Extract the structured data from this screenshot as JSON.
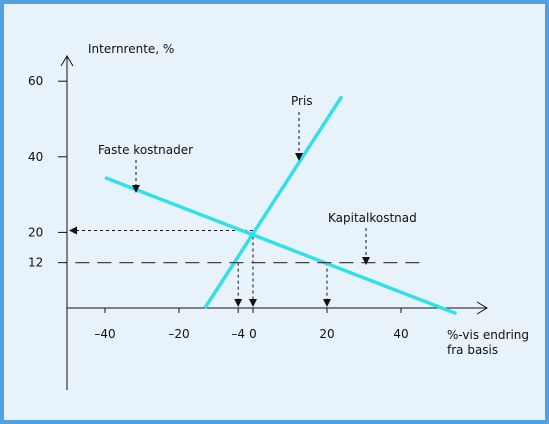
{
  "chart_data": {
    "type": "line",
    "ylabel": "Internrente, %",
    "xlabel": [
      "%-vis endring",
      "fra basis"
    ],
    "x_ticks": [
      -40,
      -20,
      -4,
      0,
      20,
      40
    ],
    "y_ticks": [
      60,
      40,
      20,
      12
    ],
    "x_tick_labels": [
      "–40",
      "–20",
      "–4",
      "0",
      "20",
      "40"
    ],
    "y_tick_labels": [
      "60",
      "40",
      "20",
      "12"
    ],
    "xlim": [
      -48,
      62
    ],
    "ylim": [
      -20,
      70
    ],
    "grid": false,
    "series": [
      {
        "name": "Pris",
        "x": [
          -13,
          24
        ],
        "y": [
          0,
          56
        ],
        "color": "#33e0ea"
      },
      {
        "name": "Faste kostnader",
        "x": [
          -40,
          55
        ],
        "y": [
          34.5,
          -1.5
        ],
        "color": "#33e0ea"
      },
      {
        "name": "Kapitalkostnad",
        "x": [
          -48,
          46
        ],
        "y": [
          12,
          12
        ],
        "color": "#444444",
        "style": "dashed"
      }
    ],
    "annotations": [
      {
        "text": "Pris",
        "points_to_series": "Pris"
      },
      {
        "text": "Faste kostnader",
        "points_to_series": "Faste kostnader"
      },
      {
        "text": "Kapitalkostnad",
        "points_to_series": "Kapitalkostnad"
      }
    ],
    "guide_lines": [
      {
        "from": [
          0,
          20.5
        ],
        "to": [
          -48,
          20.5
        ],
        "note": "to y=20"
      },
      {
        "from": [
          0,
          20.5
        ],
        "to": [
          0,
          0
        ],
        "note": "to x=0"
      },
      {
        "from": [
          -4,
          12
        ],
        "to": [
          -4,
          0
        ],
        "note": "to x=-4"
      },
      {
        "from": [
          20,
          12
        ],
        "to": [
          20,
          0
        ],
        "note": "to x=20"
      }
    ]
  }
}
